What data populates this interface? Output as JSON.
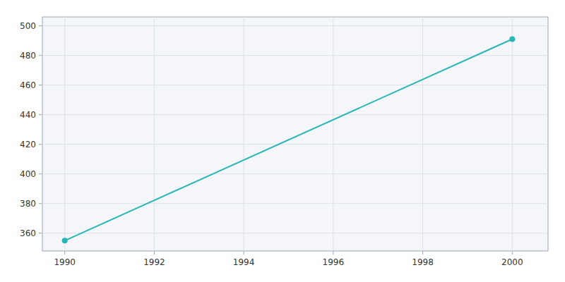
{
  "chart_data": {
    "type": "line",
    "x": [
      1990,
      2000
    ],
    "values": [
      355,
      491
    ],
    "color": "#2ab5b5",
    "marker": "circle",
    "xlim": [
      1989.5,
      2000.8
    ],
    "ylim": [
      348,
      506
    ],
    "xticks": [
      1990,
      1992,
      1994,
      1996,
      1998,
      2000
    ],
    "yticks": [
      360,
      380,
      400,
      420,
      440,
      460,
      480,
      500
    ],
    "grid": true
  }
}
